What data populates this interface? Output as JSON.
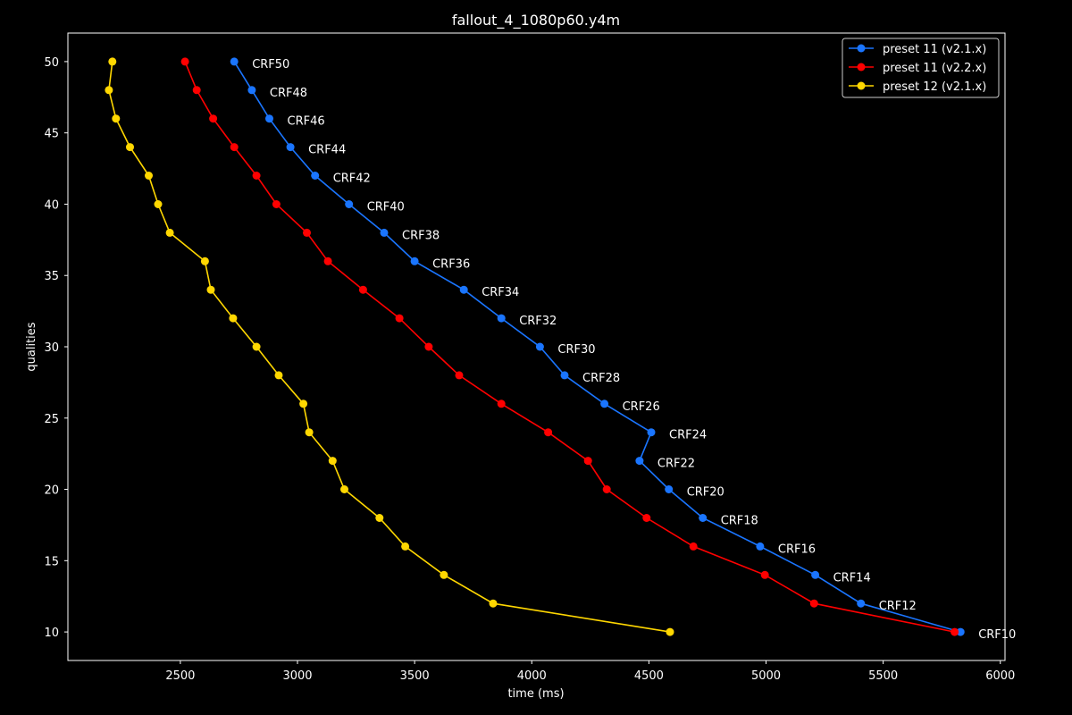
{
  "chart_data": {
    "type": "line",
    "title": "fallout_4_1080p60.y4m",
    "xlabel": "time (ms)",
    "ylabel": "qualities",
    "xlim": [
      2020,
      6020
    ],
    "ylim": [
      8,
      52
    ],
    "xticks": [
      2500,
      3000,
      3500,
      4000,
      4500,
      5000,
      5500,
      6000
    ],
    "yticks": [
      10,
      15,
      20,
      25,
      30,
      35,
      40,
      45,
      50
    ],
    "grid": false,
    "legend_position": "top-right",
    "background": "#000000",
    "foreground": "#ffffff",
    "series": [
      {
        "name": "preset 11 (v2.1.x)",
        "color": "#1a75ff",
        "x": [
          2730,
          2805,
          2880,
          2970,
          3075,
          3220,
          3370,
          3500,
          3710,
          3870,
          4035,
          4140,
          4310,
          4510,
          4460,
          4585,
          4730,
          4975,
          5210,
          5405,
          5830
        ],
        "y": [
          50,
          48,
          46,
          44,
          42,
          40,
          38,
          36,
          34,
          32,
          30,
          28,
          26,
          24,
          22,
          20,
          18,
          16,
          14,
          12,
          10
        ]
      },
      {
        "name": "preset 11 (v2.2.x)",
        "color": "#ff0000",
        "x": [
          2520,
          2570,
          2640,
          2730,
          2825,
          2910,
          3040,
          3130,
          3280,
          3435,
          3560,
          3690,
          3870,
          4070,
          4240,
          4320,
          4490,
          4690,
          4995,
          5205,
          5805
        ],
        "y": [
          50,
          48,
          46,
          44,
          42,
          40,
          38,
          36,
          34,
          32,
          30,
          28,
          26,
          24,
          22,
          20,
          18,
          16,
          14,
          12,
          10
        ]
      },
      {
        "name": "preset 12 (v2.1.x)",
        "color": "#ffd700",
        "x": [
          2210,
          2195,
          2225,
          2285,
          2365,
          2405,
          2455,
          2605,
          2630,
          2725,
          2825,
          2920,
          3025,
          3050,
          3150,
          3200,
          3350,
          3460,
          3625,
          3835,
          4590
        ],
        "y": [
          50,
          48,
          46,
          44,
          42,
          40,
          38,
          36,
          34,
          32,
          30,
          28,
          26,
          24,
          22,
          20,
          18,
          16,
          14,
          12,
          10
        ]
      }
    ],
    "annotations": [
      {
        "text": "CRF50",
        "x": 2730,
        "y": 50
      },
      {
        "text": "CRF48",
        "x": 2805,
        "y": 48
      },
      {
        "text": "CRF46",
        "x": 2880,
        "y": 46
      },
      {
        "text": "CRF44",
        "x": 2970,
        "y": 44
      },
      {
        "text": "CRF42",
        "x": 3075,
        "y": 42
      },
      {
        "text": "CRF40",
        "x": 3220,
        "y": 40
      },
      {
        "text": "CRF38",
        "x": 3370,
        "y": 38
      },
      {
        "text": "CRF36",
        "x": 3500,
        "y": 36
      },
      {
        "text": "CRF34",
        "x": 3710,
        "y": 34
      },
      {
        "text": "CRF32",
        "x": 3870,
        "y": 32
      },
      {
        "text": "CRF30",
        "x": 4035,
        "y": 30
      },
      {
        "text": "CRF28",
        "x": 4140,
        "y": 28
      },
      {
        "text": "CRF26",
        "x": 4310,
        "y": 26
      },
      {
        "text": "CRF24",
        "x": 4510,
        "y": 24
      },
      {
        "text": "CRF22",
        "x": 4460,
        "y": 22
      },
      {
        "text": "CRF20",
        "x": 4585,
        "y": 20
      },
      {
        "text": "CRF18",
        "x": 4730,
        "y": 18
      },
      {
        "text": "CRF16",
        "x": 4975,
        "y": 16
      },
      {
        "text": "CRF14",
        "x": 5210,
        "y": 14
      },
      {
        "text": "CRF12",
        "x": 5405,
        "y": 12
      },
      {
        "text": "CRF10",
        "x": 5830,
        "y": 10
      }
    ]
  }
}
